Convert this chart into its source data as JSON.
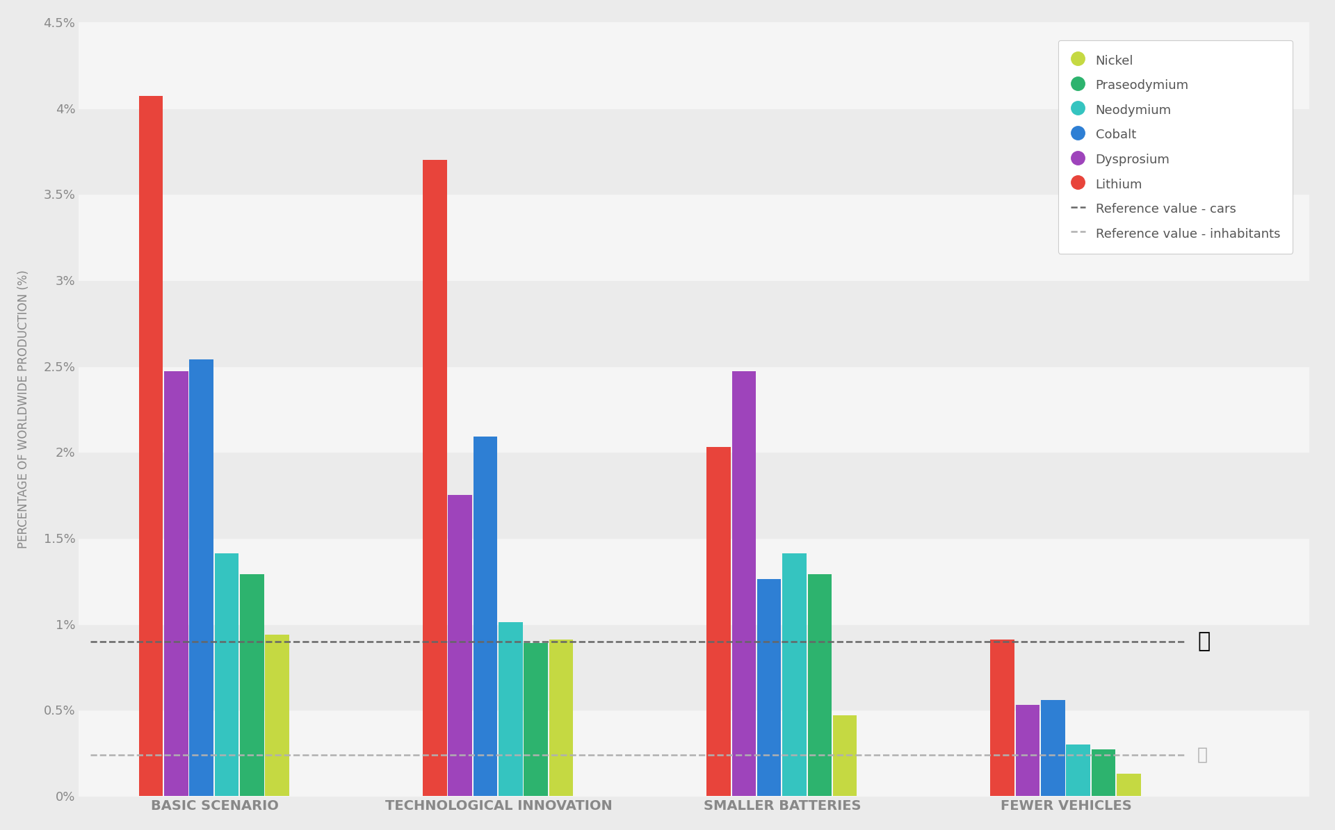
{
  "scenarios": [
    "BASIC SCENARIO",
    "TECHNOLOGICAL INNOVATION",
    "SMALLER BATTERIES",
    "FEWER VEHICLES"
  ],
  "colors": {
    "Nickel": "#c5d942",
    "Praseodymium": "#2db36e",
    "Neodymium": "#35c4c0",
    "Cobalt": "#2e7fd4",
    "Dysprosium": "#9e44bb",
    "Lithium": "#e8443b"
  },
  "values": {
    "BASIC SCENARIO": {
      "Lithium": 4.07,
      "Dysprosium": 2.47,
      "Cobalt": 2.54,
      "Neodymium": 1.41,
      "Praseodymium": 1.29,
      "Nickel": 0.94
    },
    "TECHNOLOGICAL INNOVATION": {
      "Lithium": 3.7,
      "Dysprosium": 1.75,
      "Cobalt": 2.09,
      "Neodymium": 1.01,
      "Praseodymium": 0.89,
      "Nickel": 0.91
    },
    "SMALLER BATTERIES": {
      "Lithium": 2.03,
      "Dysprosium": 2.47,
      "Cobalt": 1.26,
      "Neodymium": 1.41,
      "Praseodymium": 1.29,
      "Nickel": 0.47
    },
    "FEWER VEHICLES": {
      "Lithium": 0.91,
      "Dysprosium": 0.53,
      "Cobalt": 0.56,
      "Neodymium": 0.3,
      "Praseodymium": 0.27,
      "Nickel": 0.13
    }
  },
  "ref_cars": 0.9,
  "ref_inhabitants": 0.24,
  "ylabel": "PERCENTAGE OF WORLDWIDE PRODUCTION (%)",
  "ylim_max": 4.5,
  "yticks": [
    0.0,
    0.5,
    1.0,
    1.5,
    2.0,
    2.5,
    3.0,
    3.5,
    4.0,
    4.5
  ],
  "ytick_labels": [
    "0%",
    "0.5%",
    "1%",
    "1.5%",
    "2%",
    "2.5%",
    "3%",
    "3.5%",
    "4%",
    "4.5%"
  ],
  "background_color": "#ebebeb",
  "plot_bg_bands": [
    "#f5f5f5",
    "#ebebeb"
  ],
  "bar_order": [
    "Lithium",
    "Dysprosium",
    "Cobalt",
    "Neodymium",
    "Praseodymium",
    "Nickel"
  ],
  "legend_order": [
    "Nickel",
    "Praseodymium",
    "Neodymium",
    "Cobalt",
    "Dysprosium",
    "Lithium"
  ],
  "ref_cars_color": "#666666",
  "ref_inh_color": "#b0b0b0",
  "tick_color": "#888888",
  "label_color": "#888888"
}
